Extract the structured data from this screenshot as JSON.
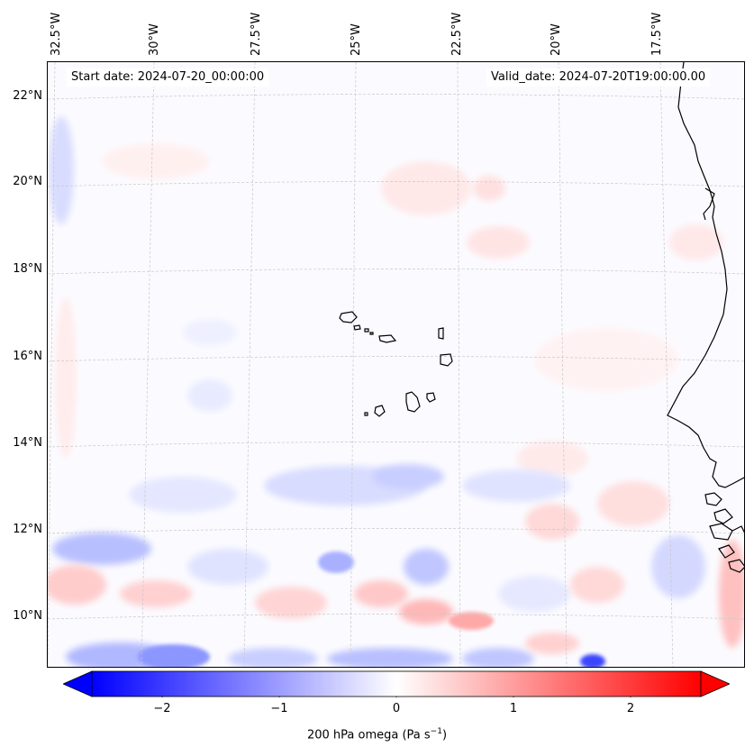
{
  "map": {
    "start_date_text": "Start date: 2024-07-20_00:00:00",
    "valid_date_text": "Valid_date: 2024-07-20T19:00:00.00",
    "longitude_labels": [
      "32.5°W",
      "30°W",
      "27.5°W",
      "25°W",
      "22.5°W",
      "20°W",
      "17.5°W"
    ],
    "latitude_labels": [
      "22°N",
      "20°N",
      "18°N",
      "16°N",
      "14°N",
      "12°N",
      "10°N"
    ],
    "coastline_color": "#000000",
    "gridline_color": "#c8c8c8"
  },
  "colorbar": {
    "label_main": "200 hPa omega (Pa s",
    "label_exp": "−1",
    "label_end": ")",
    "ticks": [
      "−2",
      "−1",
      "0",
      "1",
      "2"
    ],
    "tick_values": [
      -2,
      -1,
      0,
      1,
      2
    ],
    "vmin": -2.6,
    "vmax": 2.6,
    "extend": "both",
    "colormap": "bwr",
    "low_color": "#0000ff",
    "mid_color": "#ffffff",
    "high_color": "#ff0000"
  }
}
